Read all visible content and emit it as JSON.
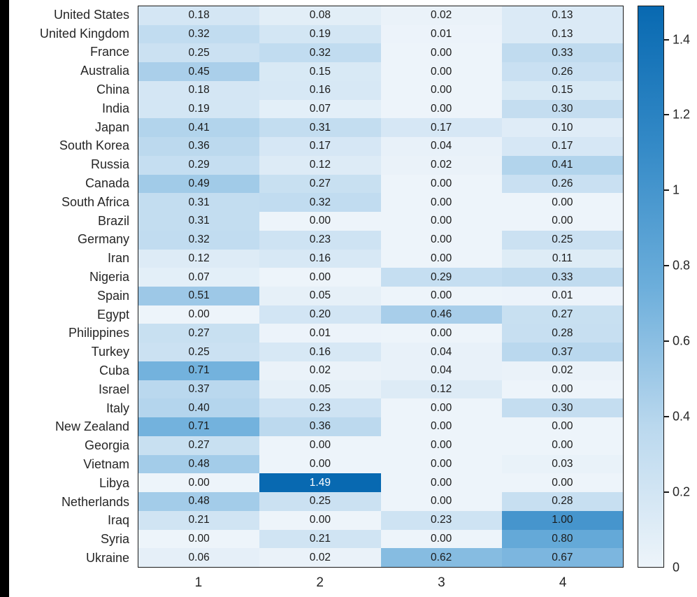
{
  "figure": {
    "background": "#ffffff",
    "left_bar_color": "#000000",
    "border_color": "#1a1a1a",
    "text_color": "#262626"
  },
  "chart_data": {
    "type": "heatmap",
    "title": "",
    "xlabel": "",
    "ylabel": "",
    "x_categories": [
      "1",
      "2",
      "3",
      "4"
    ],
    "y_categories": [
      "United States",
      "United Kingdom",
      "France",
      "Australia",
      "China",
      "India",
      "Japan",
      "South Korea",
      "Russia",
      "Canada",
      "South Africa",
      "Brazil",
      "Germany",
      "Iran",
      "Nigeria",
      "Spain",
      "Egypt",
      "Philippines",
      "Turkey",
      "Cuba",
      "Israel",
      "Italy",
      "New Zealand",
      "Georgia",
      "Vietnam",
      "Libya",
      "Netherlands",
      "Iraq",
      "Syria",
      "Ukraine"
    ],
    "values": [
      [
        0.18,
        0.08,
        0.02,
        0.13
      ],
      [
        0.32,
        0.19,
        0.01,
        0.13
      ],
      [
        0.25,
        0.32,
        0.0,
        0.33
      ],
      [
        0.45,
        0.15,
        0.0,
        0.26
      ],
      [
        0.18,
        0.16,
        0.0,
        0.15
      ],
      [
        0.19,
        0.07,
        0.0,
        0.3
      ],
      [
        0.41,
        0.31,
        0.17,
        0.1
      ],
      [
        0.36,
        0.17,
        0.04,
        0.17
      ],
      [
        0.29,
        0.12,
        0.02,
        0.41
      ],
      [
        0.49,
        0.27,
        0.0,
        0.26
      ],
      [
        0.31,
        0.32,
        0.0,
        0.0
      ],
      [
        0.31,
        0.0,
        0.0,
        0.0
      ],
      [
        0.32,
        0.23,
        0.0,
        0.25
      ],
      [
        0.12,
        0.16,
        0.0,
        0.11
      ],
      [
        0.07,
        0.0,
        0.29,
        0.33
      ],
      [
        0.51,
        0.05,
        0.0,
        0.01
      ],
      [
        0.0,
        0.2,
        0.46,
        0.27
      ],
      [
        0.27,
        0.01,
        0.0,
        0.28
      ],
      [
        0.25,
        0.16,
        0.04,
        0.37
      ],
      [
        0.71,
        0.02,
        0.04,
        0.02
      ],
      [
        0.37,
        0.05,
        0.12,
        0.0
      ],
      [
        0.4,
        0.23,
        0.0,
        0.3
      ],
      [
        0.71,
        0.36,
        0.0,
        0.0
      ],
      [
        0.27,
        0.0,
        0.0,
        0.0
      ],
      [
        0.48,
        0.0,
        0.0,
        0.03
      ],
      [
        0.0,
        1.49,
        0.0,
        0.0
      ],
      [
        0.48,
        0.25,
        0.0,
        0.28
      ],
      [
        0.21,
        0.0,
        0.23,
        1.0
      ],
      [
        0.0,
        0.21,
        0.0,
        0.8
      ],
      [
        0.06,
        0.02,
        0.62,
        0.67
      ]
    ],
    "cell_value_decimals": 2,
    "grid_visible": false,
    "colormap": {
      "name": "blues",
      "stops": [
        {
          "t": 0.0,
          "rgb": [
            237,
            244,
            250
          ]
        },
        {
          "t": 0.25,
          "rgb": [
            186,
            216,
            238
          ]
        },
        {
          "t": 0.5,
          "rgb": [
            108,
            174,
            219
          ]
        },
        {
          "t": 0.75,
          "rgb": [
            52,
            138,
            199
          ]
        },
        {
          "t": 1.0,
          "rgb": [
            8,
            105,
            177
          ]
        }
      ],
      "white_text_threshold": 0.8
    },
    "colorbar": {
      "position": "right",
      "min": 0,
      "max": 1.49,
      "ticks": [
        {
          "value": 0.0,
          "label": "0"
        },
        {
          "value": 0.2,
          "label": "0.2"
        },
        {
          "value": 0.4,
          "label": "0.4"
        },
        {
          "value": 0.6,
          "label": "0.6"
        },
        {
          "value": 0.8,
          "label": "0.8"
        },
        {
          "value": 1.0,
          "label": "1"
        },
        {
          "value": 1.2,
          "label": "1.2"
        },
        {
          "value": 1.4,
          "label": "1.4"
        }
      ]
    }
  }
}
